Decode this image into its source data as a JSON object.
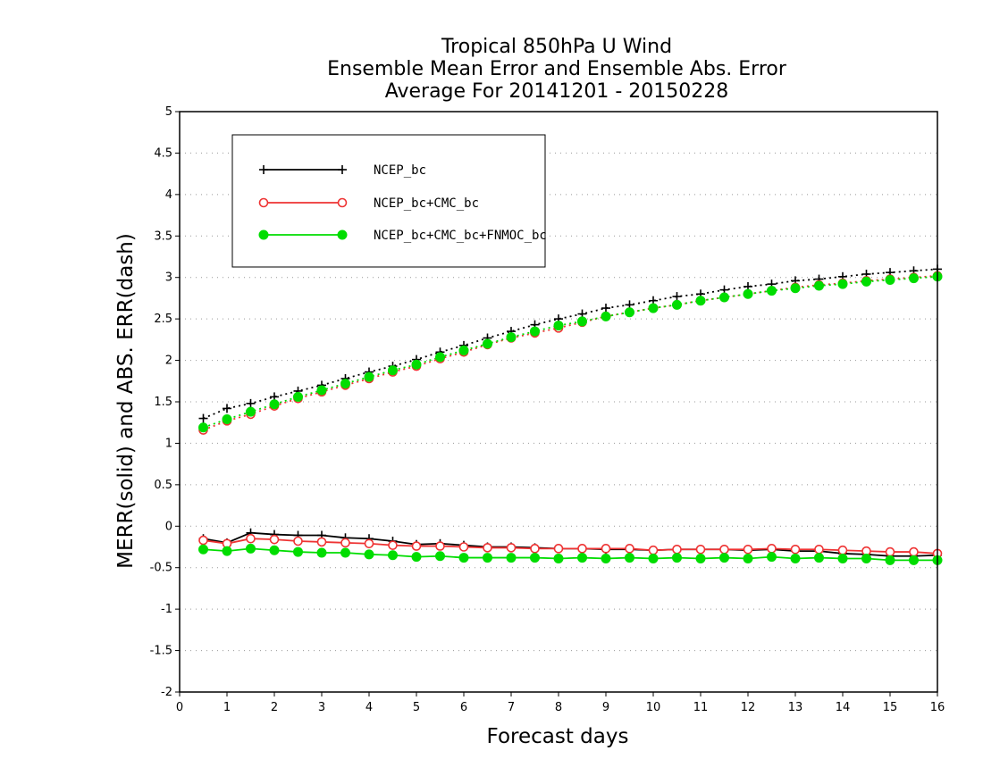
{
  "chart_data": {
    "type": "line",
    "title": [
      "Tropical 850hPa U Wind",
      "Ensemble Mean Error and Ensemble Abs. Error",
      "Average For 20141201 - 20150228"
    ],
    "xlabel": "Forecast days",
    "ylabel": "MERR(solid) and ABS. ERR(dash)",
    "xlim": [
      0,
      16
    ],
    "ylim": [
      -2,
      5
    ],
    "x_ticks": [
      "0",
      "1",
      "2",
      "3",
      "4",
      "5",
      "6",
      "7",
      "8",
      "9",
      "10",
      "11",
      "12",
      "13",
      "14",
      "15",
      "16"
    ],
    "y_ticks": [
      "-2",
      "-1.5",
      "-1",
      "-0.5",
      "0",
      "0.5",
      "1",
      "1.5",
      "2",
      "2.5",
      "3",
      "3.5",
      "4",
      "4.5",
      "5"
    ],
    "grid": true,
    "legend_position": "top-left",
    "x": [
      0.5,
      1,
      1.5,
      2,
      2.5,
      3,
      3.5,
      4,
      4.5,
      5,
      5.5,
      6,
      6.5,
      7,
      7.5,
      8,
      8.5,
      9,
      9.5,
      10,
      10.5,
      11,
      11.5,
      12,
      12.5,
      13,
      13.5,
      14,
      14.5,
      15,
      15.5,
      16
    ],
    "series": [
      {
        "name": "NCEP_bc",
        "color": "#000000",
        "marker": "plus",
        "merr": [
          -0.15,
          -0.2,
          -0.08,
          -0.1,
          -0.11,
          -0.11,
          -0.14,
          -0.15,
          -0.18,
          -0.22,
          -0.21,
          -0.23,
          -0.25,
          -0.25,
          -0.26,
          -0.27,
          -0.27,
          -0.28,
          -0.28,
          -0.29,
          -0.28,
          -0.28,
          -0.28,
          -0.29,
          -0.28,
          -0.3,
          -0.3,
          -0.33,
          -0.34,
          -0.36,
          -0.36,
          -0.35
        ],
        "abs_err": [
          1.3,
          1.42,
          1.48,
          1.56,
          1.63,
          1.7,
          1.78,
          1.86,
          1.93,
          2.01,
          2.1,
          2.18,
          2.27,
          2.35,
          2.43,
          2.5,
          2.56,
          2.63,
          2.67,
          2.72,
          2.77,
          2.8,
          2.85,
          2.89,
          2.92,
          2.96,
          2.98,
          3.01,
          3.04,
          3.06,
          3.08,
          3.1
        ]
      },
      {
        "name": "NCEP_bc+CMC_bc",
        "color": "#ee3333",
        "marker": "open-circle",
        "merr": [
          -0.17,
          -0.21,
          -0.15,
          -0.16,
          -0.18,
          -0.19,
          -0.2,
          -0.21,
          -0.23,
          -0.24,
          -0.24,
          -0.25,
          -0.26,
          -0.26,
          -0.27,
          -0.27,
          -0.27,
          -0.27,
          -0.27,
          -0.29,
          -0.28,
          -0.28,
          -0.28,
          -0.28,
          -0.27,
          -0.28,
          -0.28,
          -0.29,
          -0.3,
          -0.31,
          -0.31,
          -0.33
        ],
        "abs_err": [
          1.16,
          1.27,
          1.35,
          1.45,
          1.54,
          1.62,
          1.7,
          1.78,
          1.86,
          1.93,
          2.02,
          2.1,
          2.19,
          2.27,
          2.33,
          2.39,
          2.46,
          2.53,
          2.58,
          2.63,
          2.67,
          2.72,
          2.76,
          2.8,
          2.84,
          2.88,
          2.91,
          2.93,
          2.96,
          2.98,
          3.0,
          3.02
        ]
      },
      {
        "name": "NCEP_bc+CMC_bc+FNMOC_bc",
        "color": "#00dd00",
        "marker": "filled-circle",
        "merr": [
          -0.28,
          -0.3,
          -0.27,
          -0.29,
          -0.31,
          -0.32,
          -0.32,
          -0.34,
          -0.35,
          -0.37,
          -0.36,
          -0.38,
          -0.38,
          -0.38,
          -0.38,
          -0.39,
          -0.38,
          -0.39,
          -0.38,
          -0.39,
          -0.38,
          -0.39,
          -0.38,
          -0.39,
          -0.37,
          -0.39,
          -0.38,
          -0.39,
          -0.39,
          -0.41,
          -0.41,
          -0.41
        ],
        "abs_err": [
          1.19,
          1.29,
          1.38,
          1.47,
          1.56,
          1.64,
          1.72,
          1.8,
          1.88,
          1.95,
          2.04,
          2.12,
          2.2,
          2.28,
          2.35,
          2.42,
          2.47,
          2.53,
          2.58,
          2.63,
          2.67,
          2.72,
          2.76,
          2.8,
          2.84,
          2.87,
          2.9,
          2.92,
          2.95,
          2.97,
          2.99,
          3.01
        ]
      }
    ]
  }
}
